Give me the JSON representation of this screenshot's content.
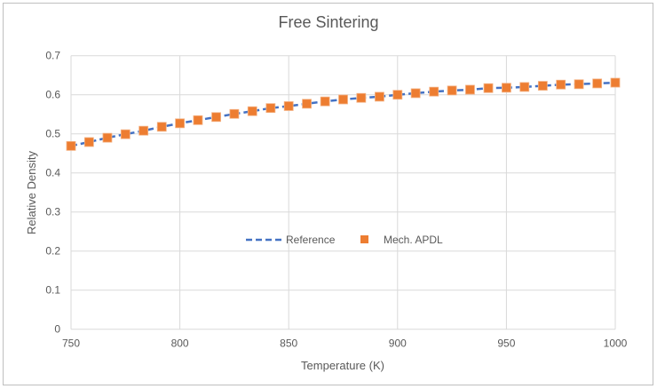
{
  "chart_data": {
    "type": "line",
    "title": "Free Sintering",
    "xlabel": "Temperature (K)",
    "ylabel": "Relative Density",
    "xlim": [
      750,
      1000
    ],
    "ylim": [
      0,
      0.7
    ],
    "xticks": [
      "750",
      "800",
      "850",
      "900",
      "950",
      "1000"
    ],
    "yticks": [
      "0",
      "0.1",
      "0.2",
      "0.3",
      "0.4",
      "0.5",
      "0.6",
      "0.7"
    ],
    "grid": true,
    "legend_position": "center",
    "x": [
      750,
      758.3,
      766.7,
      775,
      783.3,
      791.7,
      800,
      808.3,
      816.7,
      825,
      833.3,
      841.7,
      850,
      858.3,
      866.7,
      875,
      883.3,
      891.7,
      900,
      908.3,
      916.7,
      925,
      933.3,
      941.7,
      950,
      958.3,
      966.7,
      975,
      983.3,
      991.7,
      1000
    ],
    "series": [
      {
        "name": "Reference",
        "style": "dashed line",
        "color": "#4472c4",
        "values": [
          0.469,
          0.479,
          0.49,
          0.499,
          0.508,
          0.518,
          0.527,
          0.535,
          0.543,
          0.551,
          0.558,
          0.566,
          0.571,
          0.577,
          0.583,
          0.588,
          0.592,
          0.595,
          0.6,
          0.604,
          0.608,
          0.611,
          0.613,
          0.617,
          0.618,
          0.62,
          0.623,
          0.626,
          0.627,
          0.629,
          0.631
        ]
      },
      {
        "name": "Mech. APDL",
        "style": "square markers",
        "color": "#ed7d31",
        "values": [
          0.469,
          0.479,
          0.49,
          0.499,
          0.508,
          0.518,
          0.527,
          0.535,
          0.543,
          0.551,
          0.558,
          0.566,
          0.571,
          0.577,
          0.583,
          0.588,
          0.592,
          0.595,
          0.6,
          0.604,
          0.608,
          0.611,
          0.613,
          0.617,
          0.618,
          0.62,
          0.623,
          0.626,
          0.627,
          0.629,
          0.631
        ]
      }
    ]
  }
}
